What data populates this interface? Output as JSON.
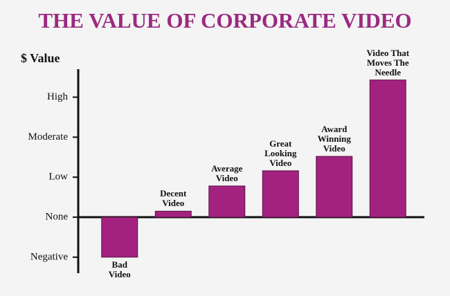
{
  "chart_data": {
    "type": "bar",
    "title": "THE VALUE OF CORPORATE VIDEO",
    "y_label": "$ Value",
    "categories": [
      "Bad\nVideo",
      "Decent\nVideo",
      "Average\nVideo",
      "Great\nLooking\nVideo",
      "Award\nWinning\nVideo",
      "Video That\nMoves The\nNeedle"
    ],
    "values": [
      -1,
      0.15,
      0.78,
      1.16,
      1.52,
      3.43
    ],
    "color": "#a3227f",
    "title_color": "#9b2a80",
    "ylim": [
      -1.4,
      3.7
    ],
    "yticks": [
      {
        "value": -1,
        "label": "Negative"
      },
      {
        "value": 0,
        "label": "None"
      },
      {
        "value": 1,
        "label": "Low"
      },
      {
        "value": 2,
        "label": "Moderate"
      },
      {
        "value": 3,
        "label": "High"
      }
    ],
    "grid": false
  }
}
